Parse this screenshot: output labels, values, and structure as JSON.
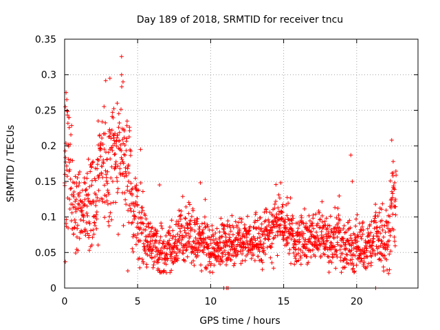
{
  "chart_data": {
    "type": "scatter",
    "title": "Day 189 of 2018, SRMTID for receiver tncu",
    "xlabel": "GPS time / hours",
    "ylabel": "SRMTID / TECUs",
    "xlim": [
      0,
      24.2
    ],
    "ylim": [
      0,
      0.35
    ],
    "xticks": [
      0,
      5,
      10,
      15,
      20
    ],
    "xtick_labels": [
      "0",
      "5",
      "10",
      "15",
      "20"
    ],
    "yticks": [
      0,
      0.05,
      0.1,
      0.15,
      0.2,
      0.25,
      0.3,
      0.35
    ],
    "ytick_labels": [
      "0",
      "0.05",
      "0.1",
      "0.15",
      "0.2",
      "0.25",
      "0.3",
      "0.35"
    ],
    "grid": true,
    "marker": "+",
    "color": "#ff0000",
    "series": [
      {
        "name": "SRMTID",
        "profile": [
          [
            0.0,
            0.13,
            0.05
          ],
          [
            0.2,
            0.2,
            0.06
          ],
          [
            0.5,
            0.12,
            0.035
          ],
          [
            1.0,
            0.1,
            0.03
          ],
          [
            1.5,
            0.11,
            0.03
          ],
          [
            2.0,
            0.14,
            0.035
          ],
          [
            2.5,
            0.17,
            0.04
          ],
          [
            3.0,
            0.17,
            0.045
          ],
          [
            3.5,
            0.2,
            0.045
          ],
          [
            4.0,
            0.2,
            0.05
          ],
          [
            4.5,
            0.13,
            0.04
          ],
          [
            5.0,
            0.1,
            0.03
          ],
          [
            5.5,
            0.08,
            0.025
          ],
          [
            6.0,
            0.06,
            0.02
          ],
          [
            7.0,
            0.05,
            0.015
          ],
          [
            8.0,
            0.07,
            0.02
          ],
          [
            9.0,
            0.07,
            0.022
          ],
          [
            10.0,
            0.05,
            0.02
          ],
          [
            11.0,
            0.06,
            0.02
          ],
          [
            12.0,
            0.07,
            0.018
          ],
          [
            13.0,
            0.065,
            0.018
          ],
          [
            14.0,
            0.08,
            0.02
          ],
          [
            15.0,
            0.085,
            0.02
          ],
          [
            16.0,
            0.07,
            0.02
          ],
          [
            17.0,
            0.075,
            0.02
          ],
          [
            18.0,
            0.07,
            0.02
          ],
          [
            19.0,
            0.065,
            0.02
          ],
          [
            20.0,
            0.06,
            0.02
          ],
          [
            21.0,
            0.07,
            0.02
          ],
          [
            22.0,
            0.07,
            0.025
          ],
          [
            22.5,
            0.12,
            0.04
          ],
          [
            22.7,
            0.13,
            0.04
          ]
        ],
        "outliers": [
          [
            0.1,
            0.275
          ],
          [
            0.15,
            0.265
          ],
          [
            0.05,
            0.255
          ],
          [
            0.3,
            0.24
          ],
          [
            3.1,
            0.295
          ],
          [
            3.9,
            0.3
          ],
          [
            4.0,
            0.29
          ],
          [
            3.6,
            0.26
          ],
          [
            2.3,
            0.235
          ],
          [
            5.2,
            0.195
          ],
          [
            6.5,
            0.145
          ],
          [
            9.3,
            0.148
          ],
          [
            14.8,
            0.148
          ],
          [
            19.6,
            0.187
          ],
          [
            19.7,
            0.15
          ],
          [
            22.4,
            0.208
          ],
          [
            22.5,
            0.178
          ],
          [
            22.6,
            0.148
          ],
          [
            10.9,
            0.0
          ],
          [
            11.1,
            0.0
          ],
          [
            11.2,
            0.0
          ],
          [
            21.3,
            0.0
          ]
        ]
      }
    ]
  }
}
